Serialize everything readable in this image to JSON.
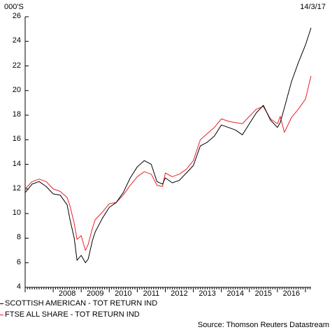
{
  "chart_data": {
    "type": "line",
    "unit_label": "000'S",
    "date_label": "14/3/17",
    "source": "Source: Thomson Reuters Datastream",
    "ylim": [
      4,
      26
    ],
    "y_ticks": [
      "4",
      "6",
      "8",
      "10",
      "12",
      "14",
      "16",
      "18",
      "20",
      "22",
      "24",
      "26"
    ],
    "xlim": [
      2007.0,
      2017.2
    ],
    "x_ticks": [
      "2008",
      "2009",
      "2010",
      "2011",
      "2012",
      "2013",
      "2014",
      "2015",
      "2016"
    ],
    "grid": false,
    "legend_position": "bottom-left",
    "colors": {
      "SCOTTISH AMERICAN - TOT RETURN IND": "#000000",
      "FTSE ALL SHARE - TOT RETURN IND": "#e8202a"
    },
    "x": [
      2007.0,
      2007.25,
      2007.5,
      2007.75,
      2008.0,
      2008.25,
      2008.5,
      2008.6,
      2008.75,
      2008.85,
      2009.0,
      2009.15,
      2009.25,
      2009.4,
      2009.5,
      2009.75,
      2010.0,
      2010.25,
      2010.5,
      2010.75,
      2011.0,
      2011.25,
      2011.5,
      2011.7,
      2011.9,
      2012.0,
      2012.25,
      2012.5,
      2012.75,
      2013.0,
      2013.25,
      2013.5,
      2013.75,
      2014.0,
      2014.25,
      2014.5,
      2014.75,
      2015.0,
      2015.25,
      2015.5,
      2015.75,
      2016.0,
      2016.1,
      2016.25,
      2016.5,
      2016.75,
      2017.0,
      2017.2
    ],
    "series": [
      {
        "name": "SCOTTISH AMERICAN - TOT RETURN IND",
        "values": [
          11.7,
          12.4,
          12.6,
          12.2,
          11.6,
          11.5,
          10.7,
          9.5,
          8.0,
          6.2,
          6.6,
          6.0,
          6.3,
          7.8,
          8.5,
          9.6,
          10.5,
          10.9,
          11.7,
          12.9,
          13.8,
          14.3,
          14.0,
          12.6,
          12.4,
          12.9,
          12.5,
          12.7,
          13.3,
          13.9,
          15.5,
          15.8,
          16.3,
          17.2,
          17.0,
          16.8,
          16.4,
          17.3,
          18.2,
          18.8,
          17.6,
          17.0,
          17.4,
          18.6,
          20.7,
          22.3,
          23.7,
          25.1
        ]
      },
      {
        "name": "FTSE ALL SHARE - TOT RETURN IND",
        "values": [
          12.0,
          12.6,
          12.8,
          12.6,
          12.0,
          11.8,
          11.3,
          10.6,
          9.2,
          7.9,
          8.2,
          7.0,
          7.5,
          8.8,
          9.5,
          10.1,
          10.8,
          10.9,
          11.5,
          12.3,
          13.0,
          13.4,
          13.2,
          12.3,
          12.2,
          13.3,
          13.0,
          13.2,
          13.6,
          14.3,
          16.0,
          16.5,
          17.0,
          17.7,
          17.5,
          17.4,
          17.3,
          17.9,
          18.5,
          18.7,
          17.7,
          17.3,
          17.9,
          16.6,
          17.8,
          18.5,
          19.3,
          21.2
        ]
      }
    ]
  }
}
